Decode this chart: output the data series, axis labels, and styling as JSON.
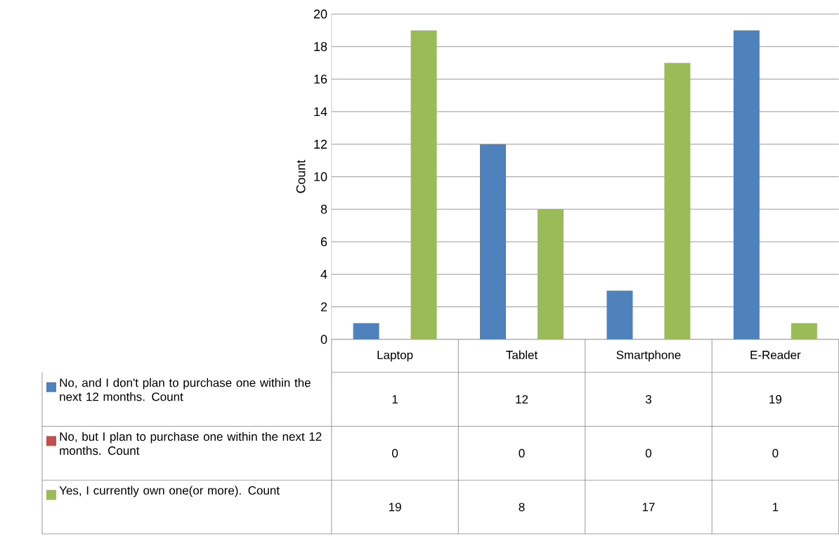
{
  "chart_data": {
    "type": "bar",
    "ylabel": "Count",
    "categories": [
      "Laptop",
      "Tablet",
      "Smartphone",
      "E-Reader"
    ],
    "series": [
      {
        "name": "No, and I don't plan to purchase one within the next 12 months. Count",
        "color": "#4f81bd",
        "values": [
          1,
          12,
          3,
          19
        ]
      },
      {
        "name": "No, but I plan to purchase one within the next 12 months. Count",
        "color": "#c0504d",
        "values": [
          0,
          0,
          0,
          0
        ]
      },
      {
        "name": "Yes, I currently own one(or more). Count",
        "color": "#9bbb59",
        "values": [
          19,
          8,
          17,
          1
        ]
      }
    ],
    "ylim": [
      0,
      20
    ],
    "yticks": [
      0,
      2,
      4,
      6,
      8,
      10,
      12,
      14,
      16,
      18,
      20
    ],
    "grid": "y",
    "legend": "bottom",
    "data_labels": true
  }
}
